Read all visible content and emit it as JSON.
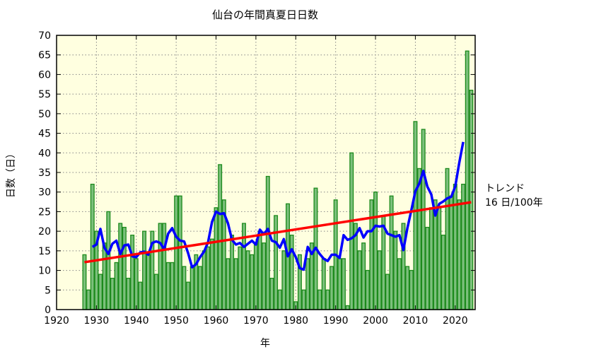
{
  "chart_data": {
    "type": "bar",
    "title": "仙台の年間真夏日日数",
    "xlabel": "年",
    "ylabel": "日数（日）",
    "xlim": [
      1920,
      2025
    ],
    "ylim": [
      0,
      70
    ],
    "x_ticks": [
      1920,
      1930,
      1940,
      1950,
      1960,
      1970,
      1980,
      1990,
      2000,
      2010,
      2020
    ],
    "y_ticks": [
      0,
      5,
      10,
      15,
      20,
      25,
      30,
      35,
      40,
      45,
      50,
      55,
      60,
      65,
      70
    ],
    "grid": true,
    "years": [
      1927,
      1928,
      1929,
      1930,
      1931,
      1932,
      1933,
      1934,
      1935,
      1936,
      1937,
      1938,
      1939,
      1940,
      1941,
      1942,
      1943,
      1944,
      1945,
      1946,
      1947,
      1948,
      1949,
      1950,
      1951,
      1952,
      1953,
      1954,
      1955,
      1956,
      1957,
      1958,
      1959,
      1960,
      1961,
      1962,
      1963,
      1964,
      1965,
      1966,
      1967,
      1968,
      1969,
      1970,
      1971,
      1972,
      1973,
      1974,
      1975,
      1976,
      1977,
      1978,
      1979,
      1980,
      1981,
      1982,
      1983,
      1984,
      1985,
      1986,
      1987,
      1988,
      1989,
      1990,
      1991,
      1992,
      1993,
      1994,
      1995,
      1996,
      1997,
      1998,
      1999,
      2000,
      2001,
      2002,
      2003,
      2004,
      2005,
      2006,
      2007,
      2008,
      2009,
      2010,
      2011,
      2012,
      2013,
      2014,
      2015,
      2016,
      2017,
      2018,
      2019,
      2020,
      2021,
      2022,
      2023,
      2024
    ],
    "values": [
      14,
      5,
      32,
      20,
      9,
      17,
      25,
      8,
      12,
      22,
      21,
      8,
      19,
      13,
      7,
      20,
      14,
      20,
      9,
      22,
      22,
      12,
      12,
      29,
      29,
      11,
      7,
      11,
      14,
      11,
      15,
      16,
      18,
      26,
      37,
      28,
      13,
      19,
      13,
      16,
      22,
      15,
      14,
      17,
      20,
      17,
      34,
      8,
      24,
      5,
      15,
      27,
      19,
      2,
      14,
      5,
      13,
      17,
      31,
      5,
      13,
      5,
      11,
      28,
      13,
      13,
      1,
      40,
      22,
      15,
      17,
      10,
      28,
      30,
      15,
      24,
      9,
      29,
      20,
      13,
      22,
      11,
      10,
      48,
      36,
      46,
      21,
      26,
      28,
      26,
      19,
      36,
      29,
      32,
      28,
      32,
      66,
      56
    ],
    "moving_average_window": 5,
    "trend": {
      "start": [
        1927,
        12.1
      ],
      "end": [
        2024,
        27.4
      ],
      "label": "トレンド",
      "rate_label": "16 日/100年"
    },
    "colors": {
      "bar_fill": "#7cc07c",
      "bar_stroke": "#1c8a1c",
      "moving_average": "#0000ff",
      "trend": "#ff0000",
      "plot_background": "#ffffe0"
    }
  }
}
